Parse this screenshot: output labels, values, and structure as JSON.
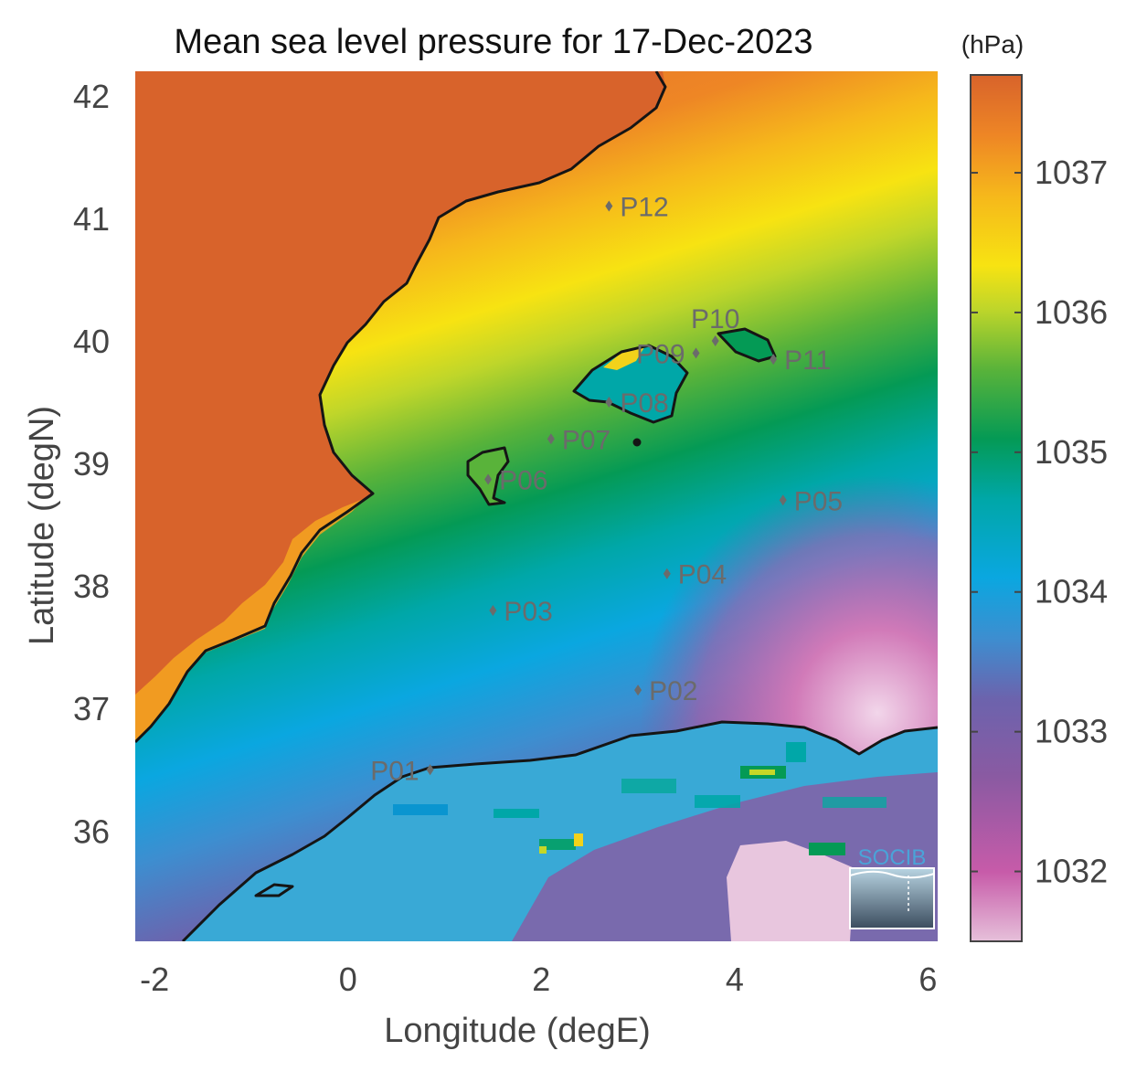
{
  "title": "Mean sea level pressure for 17-Dec-2023",
  "colorbar": {
    "unit": "(hPa)",
    "range": [
      1031.5,
      1037.7
    ],
    "ticks": [
      1032,
      1033,
      1034,
      1035,
      1036,
      1037
    ],
    "tick_labels": [
      "1032",
      "1033",
      "1034",
      "1035",
      "1036",
      "1037"
    ],
    "colormap": [
      "#e6c0da",
      "#c75ba9",
      "#8a5aa2",
      "#6c63ad",
      "#3d8ed0",
      "#0aa7e0",
      "#00a7a8",
      "#049a55",
      "#59b33a",
      "#bfd62a",
      "#f7e312",
      "#f6b81b",
      "#ee8625",
      "#d8632b"
    ]
  },
  "map": {
    "lon_range": [
      -2.2,
      6.1
    ],
    "lat_range": [
      35.1,
      42.2
    ],
    "x_ticks": [
      -2,
      0,
      2,
      4,
      6
    ],
    "x_tick_labels": [
      "-2",
      "0",
      "2",
      "4",
      "6"
    ],
    "y_ticks": [
      36,
      37,
      38,
      39,
      40,
      41,
      42
    ],
    "y_tick_labels": [
      "36",
      "37",
      "38",
      "39",
      "40",
      "41",
      "42"
    ],
    "xlabel": "Longitude (degE)",
    "ylabel": "Latitude (degN)"
  },
  "points": [
    {
      "name": "P01",
      "lon": 0.85,
      "lat": 36.5,
      "label_side": "left"
    },
    {
      "name": "P02",
      "lon": 3.0,
      "lat": 37.15,
      "label_side": "right"
    },
    {
      "name": "P03",
      "lon": 1.5,
      "lat": 37.8,
      "label_side": "right"
    },
    {
      "name": "P04",
      "lon": 3.3,
      "lat": 38.1,
      "label_side": "right"
    },
    {
      "name": "P05",
      "lon": 4.5,
      "lat": 38.7,
      "label_side": "right"
    },
    {
      "name": "P06",
      "lon": 1.45,
      "lat": 38.87,
      "label_side": "right"
    },
    {
      "name": "P07",
      "lon": 2.1,
      "lat": 39.2,
      "label_side": "right"
    },
    {
      "name": "P08",
      "lon": 2.7,
      "lat": 39.5,
      "label_side": "right"
    },
    {
      "name": "P09",
      "lon": 3.6,
      "lat": 39.9,
      "label_side": "left"
    },
    {
      "name": "P10",
      "lon": 3.8,
      "lat": 40.0,
      "label_side": "above"
    },
    {
      "name": "P11",
      "lon": 4.4,
      "lat": 39.85,
      "label_side": "right"
    },
    {
      "name": "P12",
      "lon": 2.7,
      "lat": 41.1,
      "label_side": "right"
    }
  ],
  "logo": {
    "text": "SOCIB",
    "color": "#4aa3d8"
  }
}
